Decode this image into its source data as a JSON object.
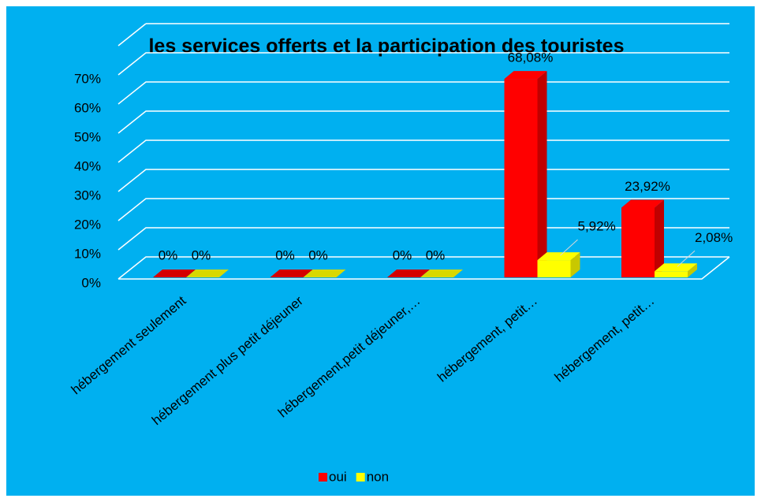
{
  "chart_data": {
    "type": "bar3d",
    "title": "les services offerts et la participation des touristes",
    "categories": [
      "hébergement seulement",
      "hébergement plus petit déjeuner",
      "hébergement,petit déjeuner,…",
      "hébergement, petit…",
      "hébergement, petit…"
    ],
    "series": [
      {
        "name": "oui",
        "color": "#ff0000",
        "values": [
          0,
          0,
          0,
          68.08,
          23.92
        ],
        "value_labels": [
          "0%",
          "0%",
          "0%",
          "68,08%",
          "23,92%"
        ]
      },
      {
        "name": "non",
        "color": "#ffff00",
        "values": [
          0,
          0,
          0,
          5.92,
          2.08
        ],
        "value_labels": [
          "0%",
          "0%",
          "0%",
          "5,92%",
          "2,08%"
        ]
      }
    ],
    "ylim": [
      0,
      80
    ],
    "yticks": [
      {
        "value": 0,
        "label": "0%"
      },
      {
        "value": 10,
        "label": "10%"
      },
      {
        "value": 20,
        "label": "20%"
      },
      {
        "value": 30,
        "label": "30%"
      },
      {
        "value": 40,
        "label": "40%"
      },
      {
        "value": 50,
        "label": "50%"
      },
      {
        "value": 60,
        "label": "60%"
      },
      {
        "value": 70,
        "label": "70%"
      }
    ],
    "grid": true,
    "legend": "bottom"
  }
}
